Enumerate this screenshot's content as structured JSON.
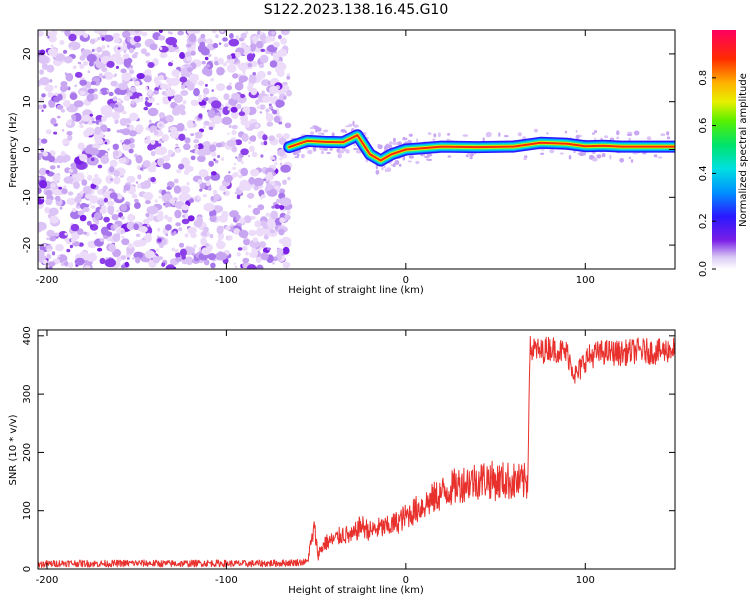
{
  "figure": {
    "title": "S122.2023.138.16.45.G10"
  },
  "chart_data": [
    {
      "type": "heatmap",
      "xlabel": "Height of straight line (km)",
      "ylabel": "Frequency (Hz)",
      "xlim": [
        -205,
        150
      ],
      "ylim": [
        -25,
        25
      ],
      "xticks": [
        -200,
        -100,
        0,
        100
      ],
      "yticks": [
        -20,
        -10,
        0,
        10,
        20
      ],
      "noise_region_x": [
        -205,
        -65
      ],
      "signal_trace": {
        "x": [
          -65,
          -55,
          -45,
          -35,
          -27,
          -20,
          -14,
          -8,
          0,
          10,
          20,
          40,
          60,
          75,
          90,
          100,
          110,
          120,
          130,
          150
        ],
        "freq": [
          0.5,
          1.8,
          1.6,
          1.5,
          3.0,
          -1.0,
          -2.3,
          -1.0,
          0.0,
          0.3,
          0.6,
          0.5,
          0.6,
          1.4,
          1.2,
          0.7,
          0.8,
          0.6,
          0.6,
          0.6
        ]
      },
      "colorbar": {
        "label": "Normalized spectral amplitude",
        "range": [
          0,
          1
        ],
        "ticks": [
          "0.0",
          "0.2",
          "0.4",
          "0.6",
          "0.8"
        ]
      }
    },
    {
      "type": "line",
      "xlabel": "Height of straight line (km)",
      "ylabel": "SNR (10 * v/v)",
      "xlim": [
        -205,
        150
      ],
      "ylim": [
        0,
        410
      ],
      "xticks": [
        -200,
        -100,
        0,
        100
      ],
      "yticks": [
        0,
        100,
        200,
        300,
        400
      ],
      "series": [
        {
          "color": "#e8302c",
          "x": [
            -205,
            -190,
            -170,
            -150,
            -130,
            -110,
            -90,
            -70,
            -55,
            -51,
            -49,
            -45,
            -40,
            -35,
            -30,
            -25,
            -20,
            -15,
            -10,
            -5,
            0,
            5,
            10,
            15,
            20,
            25,
            30,
            35,
            40,
            45,
            50,
            55,
            60,
            65,
            68,
            69,
            70,
            72,
            75,
            80,
            85,
            90,
            93,
            95,
            98,
            100,
            105,
            110,
            120,
            130,
            140,
            150
          ],
          "y": [
            8,
            10,
            9,
            10,
            9,
            10,
            9,
            10,
            12,
            70,
            25,
            45,
            50,
            60,
            55,
            75,
            65,
            70,
            72,
            80,
            90,
            100,
            110,
            120,
            130,
            138,
            145,
            150,
            152,
            155,
            150,
            152,
            150,
            148,
            150,
            380,
            375,
            378,
            372,
            380,
            375,
            370,
            345,
            330,
            348,
            360,
            368,
            372,
            370,
            375,
            372,
            378
          ]
        }
      ]
    }
  ]
}
